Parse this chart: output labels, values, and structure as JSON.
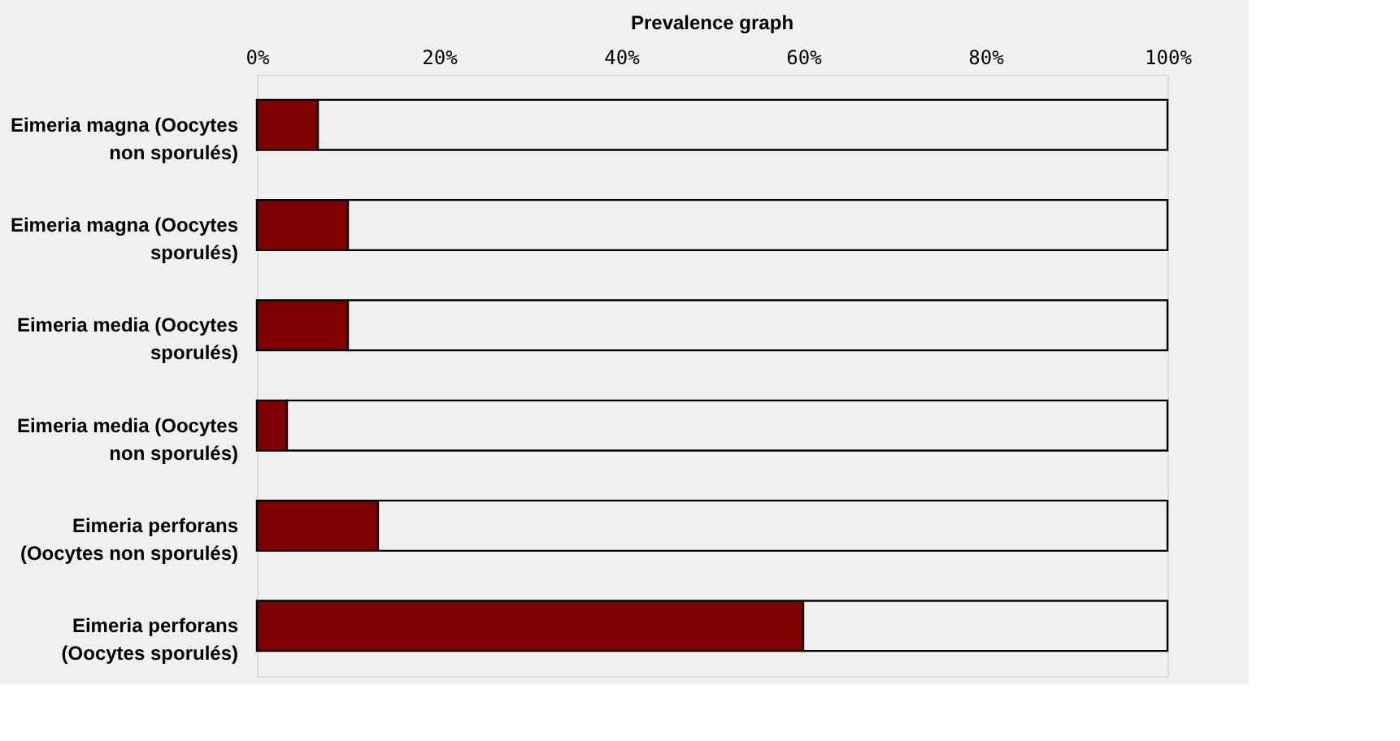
{
  "chart_data": {
    "type": "bar",
    "orientation": "horizontal",
    "stacked": true,
    "title": "Prevalence graph",
    "categories": [
      "Eimeria magna (Oocytes\nnon sporulés)",
      "Eimeria magna (Oocytes\nsporulés)",
      "Eimeria media (Oocytes\nsporulés)",
      "Eimeria media (Oocytes\nnon sporulés)",
      "Eimeria perforans\n(Oocytes non sporulés)",
      "Eimeria perforans\n(Oocytes sporulés)"
    ],
    "series": [
      {
        "color": "#800000",
        "values": [
          6.7,
          10,
          10,
          3.3,
          13.3,
          60
        ]
      },
      {
        "color": "#f0f0f0",
        "values": [
          93.3,
          90,
          90,
          96.7,
          86.7,
          40
        ]
      }
    ],
    "xlim": [
      0,
      100
    ],
    "xticks": [
      {
        "value": 0,
        "label": "0%"
      },
      {
        "value": 20,
        "label": "20%"
      },
      {
        "value": 40,
        "label": "40%"
      },
      {
        "value": 60,
        "label": "60%"
      },
      {
        "value": 80,
        "label": "80%"
      },
      {
        "value": 100,
        "label": "100%"
      }
    ],
    "grid": false,
    "legend": false
  }
}
